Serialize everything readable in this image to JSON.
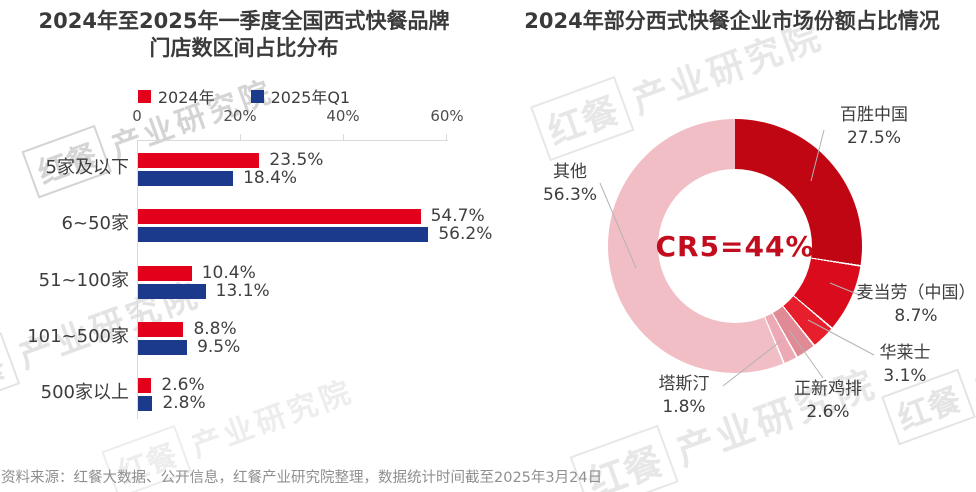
{
  "page": {
    "background": "#ffffff",
    "source_note": "资料来源：红餐大数据、公开信息，红餐产业研究院整理，数据统计时间截至2025年3月24日",
    "watermark_logo": "红餐",
    "watermark_text": "产业研究院"
  },
  "chart_data": [
    {
      "type": "bar",
      "orientation": "horizontal",
      "title": "2024年至2025年一季度全国西式快餐品牌门店数区间占比分布",
      "title_lines": [
        "2024年至2025年一季度全国西式快餐品牌",
        "门店数区间占比分布"
      ],
      "categories": [
        "5家及以下",
        "6~50家",
        "51~100家",
        "101~500家",
        "500家以上"
      ],
      "series": [
        {
          "name": "2024年",
          "color": "#e2001a",
          "values": [
            23.5,
            54.7,
            10.4,
            8.8,
            2.6
          ]
        },
        {
          "name": "2025年Q1",
          "color": "#1b3a8c",
          "values": [
            18.4,
            56.2,
            13.1,
            9.5,
            2.8
          ]
        }
      ],
      "x_axis": {
        "ticks": [
          "0",
          "20%",
          "40%",
          "60%"
        ],
        "min": 0,
        "max": 60
      },
      "value_suffix": "%",
      "grid": false,
      "legend_position": "top"
    },
    {
      "type": "pie",
      "donut": true,
      "title": "2024年部分西式快餐企业市场份额占比情况",
      "center_label": "CR5=44%",
      "center_label_color": "#c20d1e",
      "slices": [
        {
          "label": "百胜中国",
          "value": 27.5,
          "color": "#c00613"
        },
        {
          "label": "麦当劳（中国）",
          "value": 8.7,
          "color": "#d90b1c"
        },
        {
          "label": "华莱士",
          "value": 3.1,
          "color": "#e71e2b"
        },
        {
          "label": "正新鸡排",
          "value": 2.6,
          "color": "#df8a95"
        },
        {
          "label": "塔斯汀",
          "value": 1.8,
          "color": "#eeaab4"
        },
        {
          "label": "其他",
          "value": 56.3,
          "color": "#f1bec5"
        }
      ]
    }
  ]
}
